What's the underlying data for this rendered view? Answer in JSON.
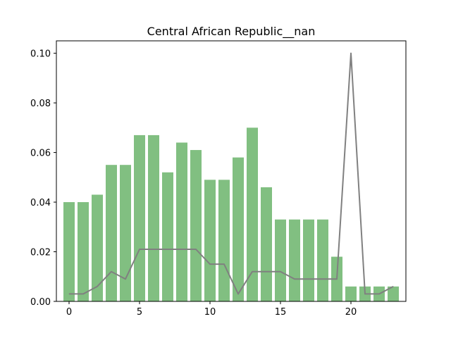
{
  "chart_data": {
    "type": "bar",
    "title": "Central African Republic__nan",
    "xlabel": "",
    "ylabel": "",
    "x": [
      0,
      1,
      2,
      3,
      4,
      5,
      6,
      7,
      8,
      9,
      10,
      11,
      12,
      13,
      14,
      15,
      16,
      17,
      18,
      19,
      20,
      21,
      22,
      23
    ],
    "xlim": [
      -0.9,
      23.9
    ],
    "ylim": [
      0,
      0.105
    ],
    "xticks": [
      0,
      5,
      10,
      15,
      20
    ],
    "xtick_labels": [
      "0",
      "5",
      "10",
      "15",
      "20"
    ],
    "yticks": [
      0,
      0.02,
      0.04,
      0.06,
      0.08,
      0.1
    ],
    "ytick_labels": [
      "0.00",
      "0.02",
      "0.04",
      "0.06",
      "0.08",
      "0.10"
    ],
    "grid": false,
    "series": [
      {
        "type": "bar",
        "color": "#81bf81",
        "values": [
          0.04,
          0.04,
          0.043,
          0.055,
          0.055,
          0.067,
          0.067,
          0.052,
          0.064,
          0.061,
          0.049,
          0.049,
          0.058,
          0.07,
          0.046,
          0.033,
          0.033,
          0.033,
          0.033,
          0.018,
          0.006,
          0.006,
          0.006,
          0.006
        ]
      },
      {
        "type": "line",
        "color": "#808080",
        "values": [
          0.003,
          0.003,
          0.006,
          0.012,
          0.009,
          0.021,
          0.021,
          0.021,
          0.021,
          0.021,
          0.015,
          0.015,
          0.003,
          0.012,
          0.012,
          0.012,
          0.009,
          0.009,
          0.009,
          0.009,
          0.1,
          0.003,
          0.003,
          0.006
        ]
      }
    ]
  }
}
